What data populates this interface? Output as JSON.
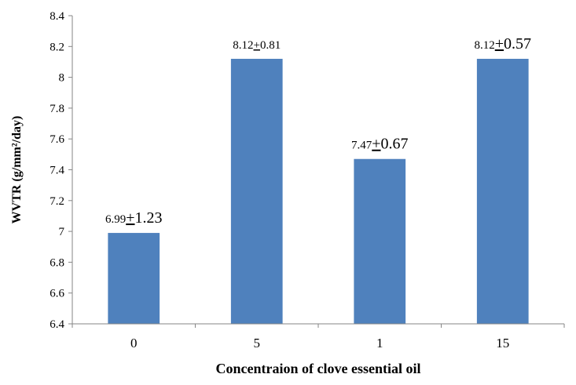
{
  "chart_data": {
    "type": "bar",
    "categories": [
      "0",
      "5",
      "1",
      "15"
    ],
    "values": [
      6.99,
      8.12,
      7.47,
      8.12
    ],
    "data_labels": [
      {
        "value": "6.99",
        "pm": "+",
        "error": "1.23",
        "error_style": "large"
      },
      {
        "value": "8.12",
        "pm": "+",
        "error": "0.81",
        "error_style": "small"
      },
      {
        "value": "7.47",
        "pm": "+",
        "error": "0.67",
        "error_style": "large"
      },
      {
        "value": "8.12",
        "pm": "+",
        "error": "0.57",
        "error_style": "large"
      }
    ],
    "xlabel": "Concentraion of clove essential oil",
    "ylabel": "WVTR (g/mm²/day)",
    "ylim": [
      6.4,
      8.4
    ],
    "yticks": [
      "6.4",
      "6.6",
      "6.8",
      "7",
      "7.2",
      "7.4",
      "7.6",
      "7.8",
      "8",
      "8.2",
      "8.4"
    ],
    "grid": false,
    "bar_color": "#4F81BD"
  }
}
